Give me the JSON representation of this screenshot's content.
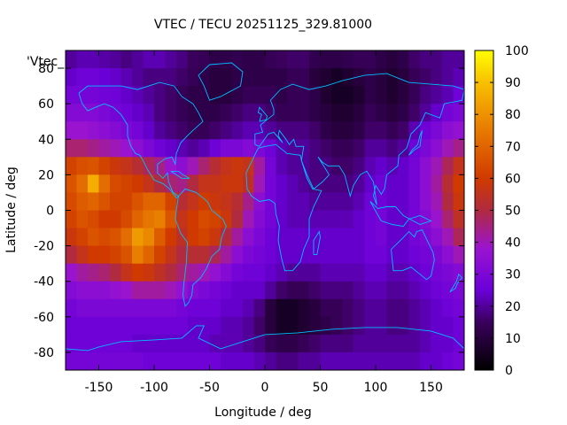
{
  "chart_data": {
    "type": "heatmap",
    "title": "VTEC / TECU 20251125_329.81000",
    "xlabel": "Longitude / deg",
    "ylabel": "Latitude / deg",
    "key_label": "'Vtec_",
    "xlim": [
      -180,
      180
    ],
    "ylim": [
      -90,
      90
    ],
    "xticks": [
      -150,
      -100,
      -50,
      0,
      50,
      100,
      150
    ],
    "yticks": [
      -80,
      -60,
      -40,
      -20,
      0,
      20,
      40,
      60,
      80
    ],
    "colorbar": {
      "range": [
        0,
        100
      ],
      "ticks": [
        0,
        10,
        20,
        30,
        40,
        50,
        60,
        70,
        80,
        90,
        100
      ],
      "palette": "black-purple-red-orange-yellow"
    },
    "grid": false,
    "overlay": "world coastlines",
    "coastline_color": "#00bfff",
    "lon": [
      -175,
      -165,
      -155,
      -145,
      -135,
      -125,
      -115,
      -105,
      -95,
      -85,
      -75,
      -65,
      -55,
      -45,
      -35,
      -25,
      -15,
      -5,
      5,
      15,
      25,
      35,
      45,
      55,
      65,
      75,
      85,
      95,
      105,
      115,
      125,
      135,
      145,
      155,
      165,
      175
    ],
    "lat": [
      85,
      75,
      65,
      55,
      45,
      35,
      25,
      15,
      5,
      -5,
      -15,
      -25,
      -35,
      -45,
      -55,
      -65,
      -75,
      -85
    ],
    "values": [
      [
        20,
        22,
        22,
        21,
        20,
        18,
        20,
        22,
        22,
        20,
        18,
        15,
        14,
        12,
        12,
        13,
        12,
        12,
        14,
        15,
        16,
        16,
        13,
        12,
        12,
        13,
        14,
        14,
        12,
        10,
        12,
        16,
        18,
        18,
        20,
        20
      ],
      [
        24,
        26,
        26,
        25,
        24,
        22,
        20,
        18,
        18,
        18,
        16,
        14,
        12,
        10,
        10,
        12,
        12,
        12,
        12,
        12,
        14,
        14,
        10,
        8,
        6,
        8,
        10,
        12,
        10,
        8,
        10,
        14,
        16,
        18,
        20,
        22
      ],
      [
        28,
        28,
        28,
        27,
        26,
        24,
        22,
        20,
        18,
        16,
        14,
        12,
        12,
        10,
        10,
        12,
        14,
        14,
        14,
        12,
        14,
        14,
        12,
        8,
        6,
        6,
        8,
        12,
        10,
        8,
        10,
        14,
        18,
        20,
        22,
        26
      ],
      [
        32,
        32,
        32,
        30,
        28,
        26,
        24,
        22,
        18,
        16,
        14,
        12,
        12,
        12,
        14,
        16,
        18,
        18,
        16,
        14,
        14,
        14,
        12,
        10,
        8,
        8,
        10,
        14,
        12,
        10,
        12,
        16,
        20,
        24,
        28,
        30
      ],
      [
        38,
        38,
        36,
        34,
        32,
        30,
        28,
        24,
        20,
        18,
        16,
        14,
        14,
        16,
        18,
        20,
        22,
        22,
        20,
        18,
        18,
        18,
        16,
        12,
        10,
        10,
        12,
        16,
        16,
        14,
        16,
        22,
        26,
        30,
        34,
        36
      ],
      [
        46,
        46,
        44,
        42,
        40,
        38,
        34,
        30,
        26,
        24,
        22,
        20,
        22,
        26,
        30,
        30,
        32,
        30,
        26,
        22,
        20,
        20,
        18,
        16,
        14,
        14,
        16,
        20,
        20,
        18,
        20,
        26,
        30,
        34,
        40,
        44
      ],
      [
        62,
        65,
        66,
        62,
        58,
        56,
        52,
        48,
        44,
        38,
        34,
        40,
        46,
        52,
        56,
        58,
        56,
        42,
        28,
        22,
        20,
        20,
        18,
        18,
        16,
        16,
        18,
        22,
        24,
        22,
        24,
        28,
        34,
        40,
        48,
        56
      ],
      [
        66,
        72,
        86,
        72,
        64,
        62,
        60,
        56,
        50,
        46,
        44,
        50,
        56,
        56,
        58,
        58,
        54,
        40,
        28,
        24,
        22,
        20,
        18,
        18,
        18,
        18,
        20,
        24,
        26,
        24,
        24,
        28,
        34,
        42,
        52,
        60
      ],
      [
        64,
        68,
        70,
        66,
        62,
        62,
        66,
        70,
        70,
        62,
        52,
        56,
        60,
        58,
        56,
        52,
        44,
        34,
        28,
        24,
        22,
        22,
        20,
        20,
        20,
        20,
        22,
        26,
        26,
        24,
        24,
        28,
        34,
        40,
        50,
        58
      ],
      [
        62,
        66,
        64,
        60,
        60,
        64,
        70,
        74,
        76,
        66,
        56,
        60,
        64,
        62,
        58,
        50,
        40,
        32,
        28,
        24,
        22,
        22,
        22,
        22,
        22,
        22,
        24,
        26,
        28,
        24,
        24,
        28,
        32,
        38,
        46,
        54
      ],
      [
        58,
        62,
        66,
        64,
        66,
        72,
        82,
        78,
        68,
        60,
        54,
        60,
        62,
        58,
        50,
        42,
        34,
        30,
        26,
        24,
        24,
        24,
        24,
        24,
        24,
        24,
        24,
        26,
        28,
        24,
        24,
        28,
        30,
        34,
        40,
        48
      ],
      [
        50,
        56,
        60,
        60,
        62,
        66,
        76,
        70,
        62,
        56,
        50,
        52,
        52,
        48,
        42,
        34,
        30,
        28,
        26,
        24,
        24,
        24,
        24,
        24,
        24,
        24,
        24,
        26,
        26,
        24,
        24,
        26,
        28,
        30,
        34,
        40
      ],
      [
        38,
        42,
        44,
        46,
        50,
        56,
        60,
        58,
        54,
        50,
        46,
        42,
        40,
        36,
        32,
        28,
        26,
        26,
        24,
        22,
        20,
        20,
        20,
        22,
        22,
        22,
        22,
        24,
        24,
        22,
        22,
        24,
        26,
        28,
        30,
        32
      ],
      [
        32,
        34,
        34,
        34,
        36,
        38,
        42,
        42,
        42,
        40,
        36,
        32,
        30,
        28,
        26,
        24,
        24,
        24,
        20,
        16,
        14,
        14,
        16,
        18,
        18,
        18,
        20,
        22,
        22,
        20,
        20,
        22,
        24,
        26,
        28,
        30
      ],
      [
        28,
        30,
        30,
        30,
        30,
        30,
        30,
        30,
        30,
        30,
        28,
        26,
        26,
        26,
        24,
        24,
        22,
        18,
        10,
        6,
        6,
        8,
        10,
        14,
        14,
        16,
        18,
        20,
        20,
        18,
        18,
        20,
        22,
        24,
        26,
        28
      ],
      [
        26,
        26,
        26,
        26,
        26,
        26,
        26,
        26,
        26,
        26,
        26,
        24,
        24,
        24,
        22,
        22,
        20,
        16,
        10,
        6,
        6,
        8,
        10,
        12,
        14,
        16,
        18,
        20,
        20,
        18,
        18,
        20,
        22,
        24,
        24,
        26
      ],
      [
        26,
        26,
        26,
        26,
        26,
        26,
        24,
        24,
        24,
        24,
        24,
        24,
        24,
        22,
        22,
        22,
        20,
        18,
        14,
        12,
        12,
        14,
        16,
        18,
        18,
        18,
        20,
        20,
        20,
        20,
        20,
        20,
        22,
        24,
        24,
        26
      ],
      [
        28,
        28,
        28,
        28,
        28,
        28,
        28,
        26,
        26,
        26,
        26,
        26,
        26,
        26,
        24,
        24,
        24,
        22,
        20,
        18,
        18,
        20,
        20,
        22,
        22,
        22,
        22,
        22,
        22,
        22,
        22,
        22,
        24,
        24,
        26,
        28
      ]
    ]
  }
}
